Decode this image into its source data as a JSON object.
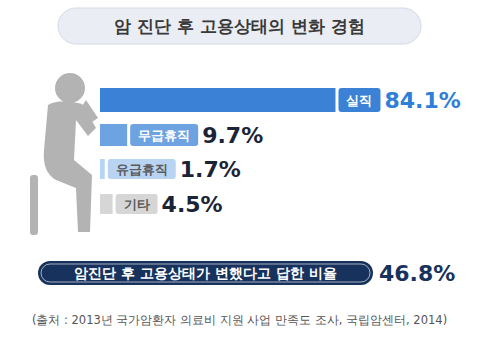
{
  "chart_data": {
    "type": "bar",
    "orientation": "horizontal",
    "title": "암 진단 후 고용상태의 변화 경험",
    "categories": [
      "실직",
      "무급휴직",
      "유급휴직",
      "기타"
    ],
    "values": [
      84.1,
      9.7,
      1.7,
      4.5
    ],
    "value_labels": [
      "84.1%",
      "9.7%",
      "1.7%",
      "4.5%"
    ],
    "colors": [
      "#3b82d6",
      "#6ea3e1",
      "#b8d4f2",
      "#d6d6d6"
    ],
    "ylim": [
      0,
      100
    ],
    "data_labels": true,
    "tick_labels": false,
    "grid": false,
    "annotations": [
      {
        "text": "암진단 후 고용상태가 변했다고 답한 비율",
        "value_label": "46.8%"
      }
    ],
    "source": "(출처 : 2013년 국가암환자 의료비 지원 사업 만족도 조사, 국립암센터, 2014)"
  }
}
